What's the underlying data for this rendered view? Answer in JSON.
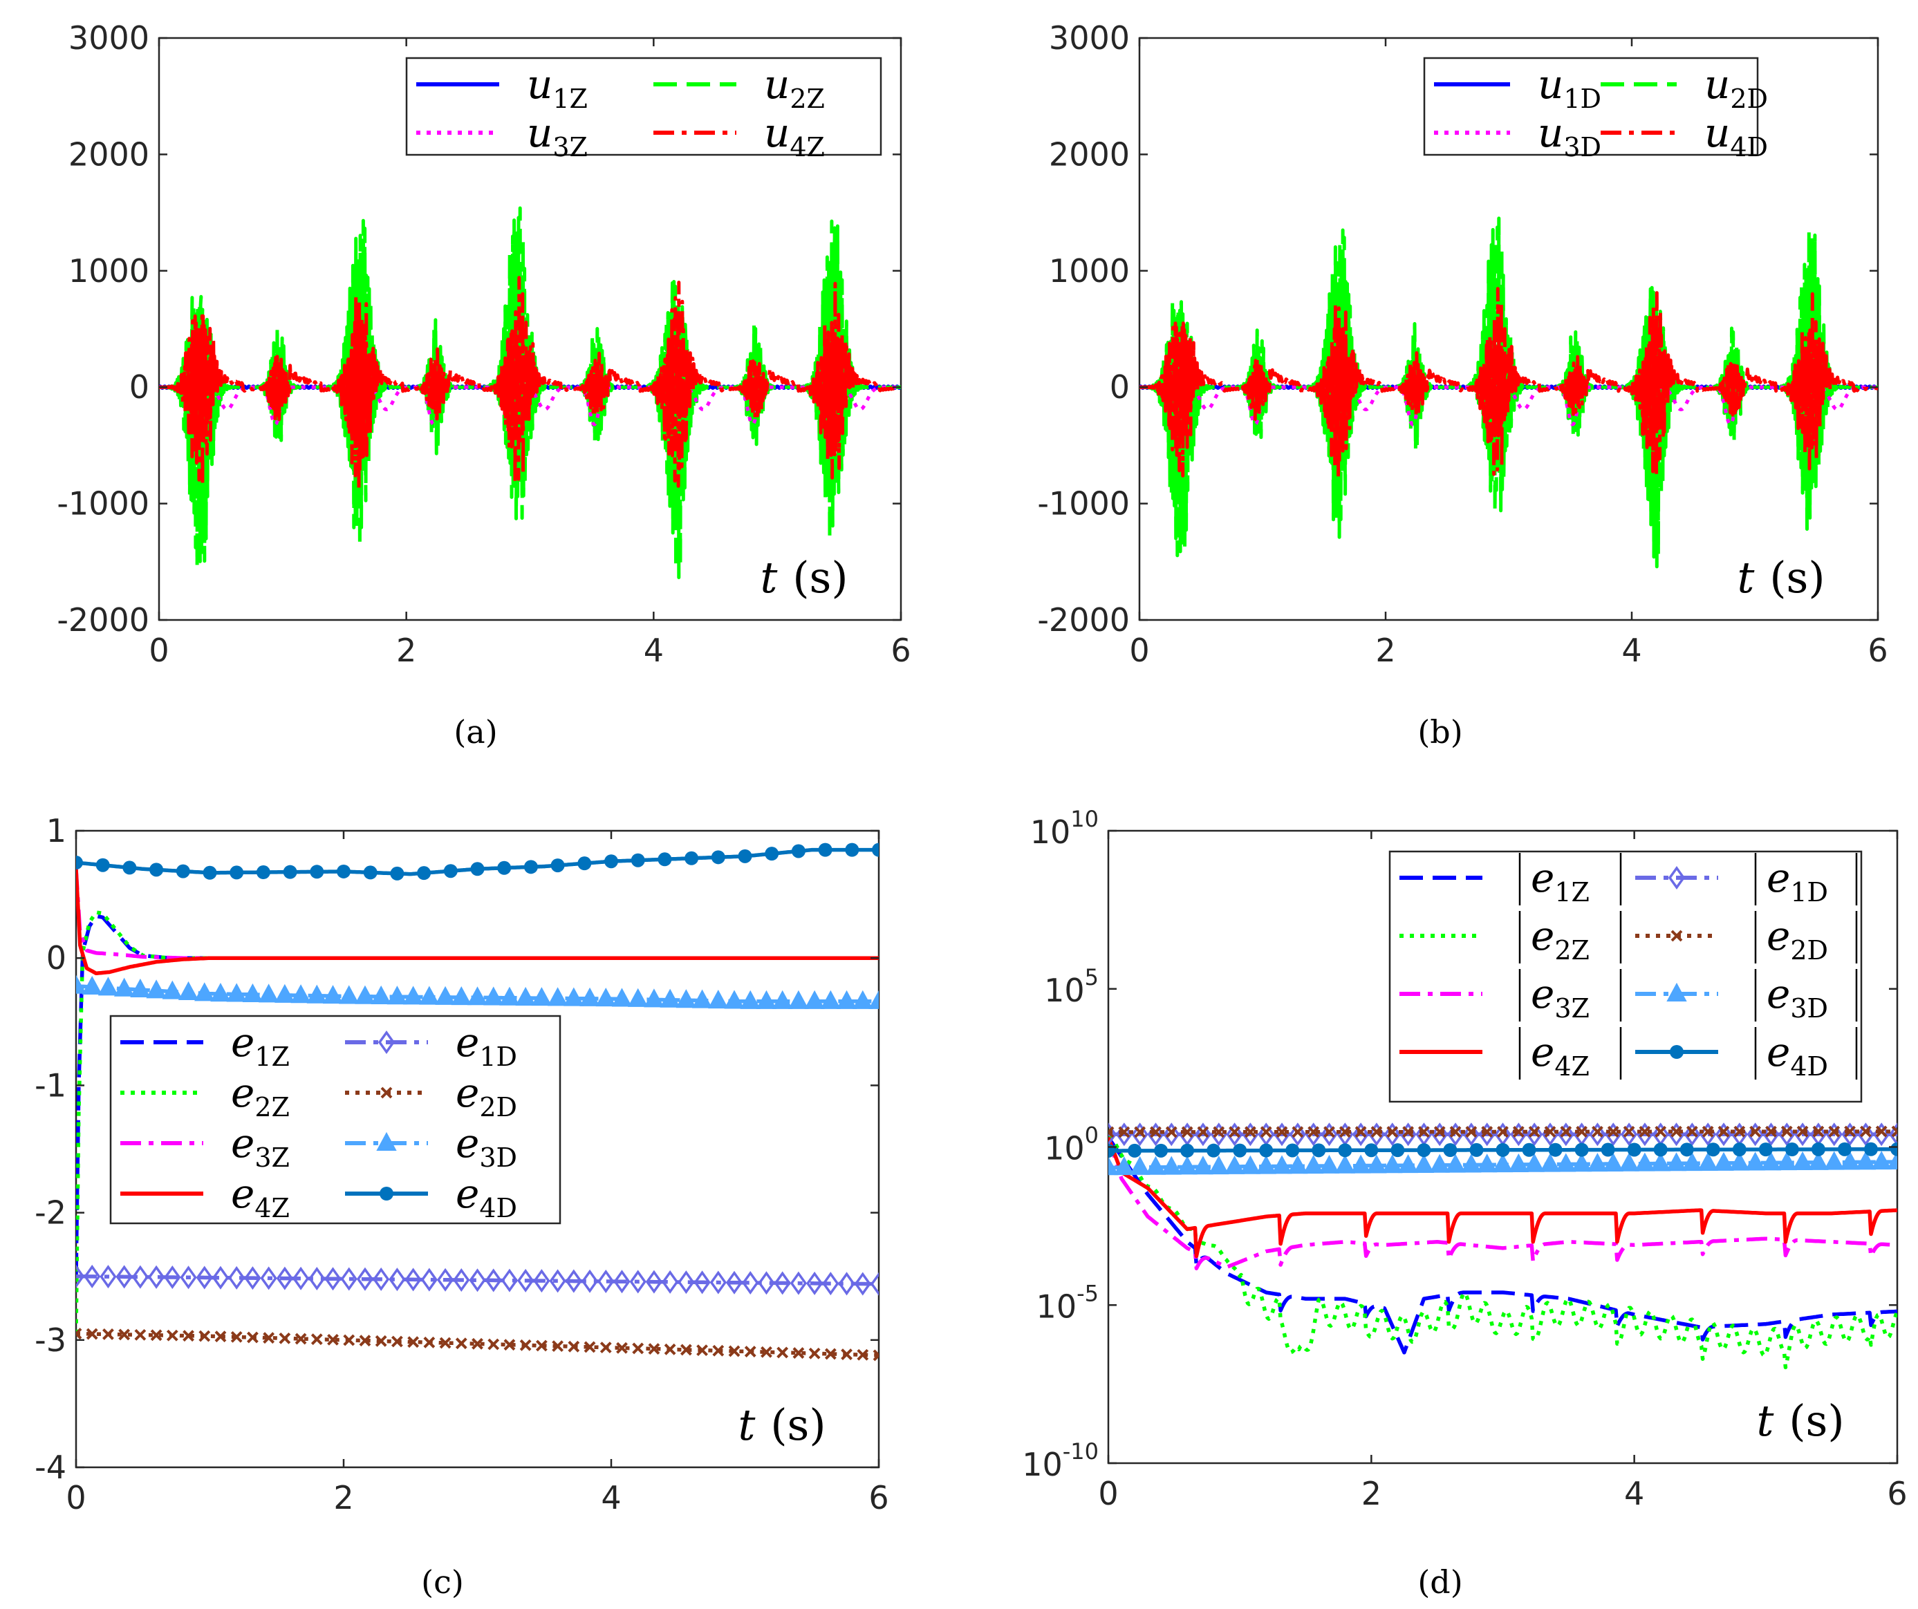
{
  "chart_data": [
    {
      "id": "a",
      "type": "line",
      "caption": "(a)",
      "xlabel": "t (s)",
      "xlabel_var": "t",
      "xlabel_unit": "(s)",
      "xlim": [
        0,
        6
      ],
      "ylim": [
        -2000,
        3000
      ],
      "yscale": "linear",
      "xticks": [
        0,
        2,
        4,
        6
      ],
      "xtick_labels": [
        "0",
        "2",
        "4",
        "6"
      ],
      "yticks": [
        -2000,
        -1000,
        0,
        1000,
        2000,
        3000
      ],
      "ytick_labels": [
        "-2000",
        "-1000",
        "0",
        "1000",
        "2000",
        "3000"
      ],
      "legend_position": "top-right",
      "legend_columns": 2,
      "bursts": [
        0.33,
        1.62,
        2.9,
        4.18,
        5.45
      ],
      "small_bursts": [
        0.96,
        2.24,
        3.54,
        4.82
      ],
      "series": [
        {
          "name": "u1",
          "base": "u",
          "index": "1",
          "subscript": "Z",
          "color": "#0000ff",
          "style": "solid",
          "shape": "zero",
          "amp": 8
        },
        {
          "name": "u2",
          "base": "u",
          "index": "2",
          "subscript": "Z",
          "color": "#00ff00",
          "style": "dashed",
          "shape": "spike",
          "amp": 1750
        },
        {
          "name": "u3",
          "base": "u",
          "index": "3",
          "subscript": "Z",
          "color": "#ff00ff",
          "style": "dotted",
          "shape": "dip",
          "amp": 320
        },
        {
          "name": "u4",
          "base": "u",
          "index": "4",
          "subscript": "Z",
          "color": "#ff0000",
          "style": "dashdot",
          "shape": "burst",
          "amp": 1000
        }
      ]
    },
    {
      "id": "b",
      "type": "line",
      "caption": "(b)",
      "xlabel": "t (s)",
      "xlabel_var": "t",
      "xlabel_unit": "(s)",
      "xlim": [
        0,
        6
      ],
      "ylim": [
        -2000,
        3000
      ],
      "yscale": "linear",
      "xticks": [
        0,
        2,
        4,
        6
      ],
      "xtick_labels": [
        "0",
        "2",
        "4",
        "6"
      ],
      "yticks": [
        -2000,
        -1000,
        0,
        1000,
        2000,
        3000
      ],
      "ytick_labels": [
        "-2000",
        "-1000",
        "0",
        "1000",
        "2000",
        "3000"
      ],
      "legend_position": "top-right",
      "legend_columns": 2,
      "bursts": [
        0.33,
        1.62,
        2.9,
        4.18,
        5.45
      ],
      "small_bursts": [
        0.96,
        2.24,
        3.54,
        4.82
      ],
      "series": [
        {
          "name": "u1",
          "base": "u",
          "index": "1",
          "subscript": "D",
          "color": "#0000ff",
          "style": "solid",
          "shape": "zero",
          "amp": 8
        },
        {
          "name": "u2",
          "base": "u",
          "index": "2",
          "subscript": "D",
          "color": "#00ff00",
          "style": "dashed",
          "shape": "spike",
          "amp": 1650
        },
        {
          "name": "u3",
          "base": "u",
          "index": "3",
          "subscript": "D",
          "color": "#ff00ff",
          "style": "dotted",
          "shape": "dip",
          "amp": 320
        },
        {
          "name": "u4",
          "base": "u",
          "index": "4",
          "subscript": "D",
          "color": "#ff0000",
          "style": "dashdot",
          "shape": "burst",
          "amp": 900
        }
      ]
    },
    {
      "id": "c",
      "type": "line",
      "caption": "(c)",
      "xlabel": "t (s)",
      "xlabel_var": "t",
      "xlabel_unit": "(s)",
      "xlim": [
        0,
        6
      ],
      "ylim": [
        -4,
        1
      ],
      "yscale": "linear",
      "xticks": [
        0,
        2,
        4,
        6
      ],
      "xtick_labels": [
        "0",
        "2",
        "4",
        "6"
      ],
      "yticks": [
        -4,
        -3,
        -2,
        -1,
        0,
        1
      ],
      "ytick_labels": [
        "-4",
        "-3",
        "-2",
        "-1",
        "0",
        "1"
      ],
      "legend_position": "center-left",
      "legend_columns": 2,
      "series": [
        {
          "name": "e1Z",
          "base": "e",
          "index": "1",
          "subscript": "Z",
          "color": "#0000ff",
          "style": "dashed",
          "marker": "none",
          "x": [
            0,
            0.02,
            0.05,
            0.1,
            0.15,
            0.2,
            0.3,
            0.4,
            0.5,
            0.7,
            1,
            6
          ],
          "y": [
            -2.5,
            -1.0,
            0.05,
            0.25,
            0.33,
            0.32,
            0.2,
            0.08,
            0.02,
            0.0,
            0.0,
            0.0
          ]
        },
        {
          "name": "e2Z",
          "base": "e",
          "index": "2",
          "subscript": "Z",
          "color": "#00ff00",
          "style": "dotted",
          "marker": "none",
          "x": [
            0,
            0.02,
            0.05,
            0.1,
            0.15,
            0.2,
            0.3,
            0.4,
            0.5,
            0.7,
            1,
            6
          ],
          "y": [
            -2.95,
            -1.2,
            0.05,
            0.28,
            0.36,
            0.35,
            0.22,
            0.09,
            0.02,
            0.0,
            0.0,
            0.0
          ]
        },
        {
          "name": "e3Z",
          "base": "e",
          "index": "3",
          "subscript": "Z",
          "color": "#ff00ff",
          "style": "dashdot",
          "marker": "none",
          "x": [
            0,
            0.03,
            0.08,
            0.15,
            0.3,
            0.5,
            0.8,
            6
          ],
          "y": [
            0.7,
            0.2,
            0.06,
            0.04,
            0.03,
            0.01,
            0.0,
            0.0
          ]
        },
        {
          "name": "e4Z",
          "base": "e",
          "index": "4",
          "subscript": "Z",
          "color": "#ff0000",
          "style": "solid",
          "marker": "none",
          "x": [
            0,
            0.03,
            0.08,
            0.15,
            0.25,
            0.4,
            0.6,
            0.8,
            1,
            6
          ],
          "y": [
            0.7,
            0.1,
            -0.08,
            -0.12,
            -0.11,
            -0.07,
            -0.03,
            -0.01,
            0.0,
            0.0
          ]
        },
        {
          "name": "e1D",
          "base": "e",
          "index": "1",
          "subscript": "D",
          "color": "#6a6ae6",
          "style": "dashdot",
          "marker": "diamond",
          "x": [
            0,
            1,
            2,
            3,
            4,
            5,
            6
          ],
          "y": [
            -2.5,
            -2.51,
            -2.52,
            -2.53,
            -2.54,
            -2.55,
            -2.56
          ]
        },
        {
          "name": "e2D",
          "base": "e",
          "index": "2",
          "subscript": "D",
          "color": "#8b3a1a",
          "style": "dotted",
          "marker": "x",
          "x": [
            0,
            1,
            2,
            3,
            4,
            5,
            6
          ],
          "y": [
            -2.95,
            -2.97,
            -3.0,
            -3.03,
            -3.06,
            -3.09,
            -3.12
          ]
        },
        {
          "name": "e3D",
          "base": "e",
          "index": "3",
          "subscript": "D",
          "color": "#4da6ff",
          "style": "dashdot",
          "marker": "triangle",
          "x": [
            0,
            1,
            2,
            3,
            4,
            5,
            6
          ],
          "y": [
            -0.22,
            -0.28,
            -0.3,
            -0.31,
            -0.32,
            -0.34,
            -0.34
          ]
        },
        {
          "name": "e4D",
          "base": "e",
          "index": "4",
          "subscript": "D",
          "color": "#0072bd",
          "style": "solid",
          "marker": "circle",
          "x": [
            0,
            0.5,
            1,
            2,
            2.5,
            3,
            3.5,
            4,
            4.5,
            5,
            5.5,
            6
          ],
          "y": [
            0.75,
            0.7,
            0.67,
            0.68,
            0.66,
            0.7,
            0.72,
            0.76,
            0.78,
            0.8,
            0.85,
            0.85
          ]
        }
      ]
    },
    {
      "id": "d",
      "type": "line",
      "caption": "(d)",
      "xlabel": "t (s)",
      "xlabel_var": "t",
      "xlabel_unit": "(s)",
      "xlim": [
        0,
        6
      ],
      "ylim": [
        -10,
        10
      ],
      "yscale": "log10",
      "xticks": [
        0,
        2,
        4,
        6
      ],
      "xtick_labels": [
        "0",
        "2",
        "4",
        "6"
      ],
      "yticks": [
        -10,
        -5,
        0,
        5,
        10
      ],
      "ytick_labels": [
        {
          "base": "10",
          "exp": "-10"
        },
        {
          "base": "10",
          "exp": "-5"
        },
        {
          "base": "10",
          "exp": "0"
        },
        {
          "base": "10",
          "exp": "5"
        },
        {
          "base": "10",
          "exp": "10"
        }
      ],
      "legend_position": "top-right",
      "legend_columns": 2,
      "series": [
        {
          "name": "|e1Z|",
          "base": "e",
          "index": "1",
          "subscript": "Z",
          "abs": true,
          "color": "#0000ff",
          "style": "dashed",
          "marker": "none",
          "x": [
            0,
            0.3,
            0.6,
            0.9,
            1.2,
            1.5,
            1.8,
            2.1,
            2.25,
            2.4,
            2.7,
            3.0,
            3.5,
            4.0,
            4.5,
            5.0,
            5.5,
            6
          ],
          "log": [
            0.3,
            -1.5,
            -3,
            -4,
            -4.6,
            -4.8,
            -4.8,
            -5.1,
            -6.5,
            -4.8,
            -4.6,
            -4.6,
            -4.8,
            -5.3,
            -5.7,
            -5.6,
            -5.3,
            -5.2
          ]
        },
        {
          "name": "|e2Z|",
          "base": "e",
          "index": "2",
          "subscript": "Z",
          "abs": true,
          "color": "#00ff00",
          "style": "dotted",
          "marker": "none",
          "x": [
            0,
            0.3,
            0.6,
            0.9,
            1.1,
            1.3,
            1.45,
            1.6,
            1.9,
            2.3,
            2.7,
            3.0,
            3.5,
            4.0,
            4.5,
            5.0,
            5.5,
            6
          ],
          "log": [
            0.3,
            -1.2,
            -2.5,
            -3.5,
            -4.8,
            -5.2,
            -6.8,
            -5.2,
            -5.4,
            -5.8,
            -5.0,
            -5.6,
            -5.2,
            -5.5,
            -5.9,
            -6.2,
            -5.8,
            -5.6
          ]
        },
        {
          "name": "|e3Z|",
          "base": "e",
          "index": "3",
          "subscript": "Z",
          "abs": true,
          "color": "#ff00ff",
          "style": "dashdot",
          "marker": "none",
          "x": [
            0,
            0.1,
            0.3,
            0.6,
            0.9,
            1.2,
            1.5,
            1.8,
            2.1,
            2.5,
            3.0,
            3.5,
            4.0,
            4.5,
            5.0,
            5.5,
            6
          ],
          "log": [
            0.3,
            -1.0,
            -2.2,
            -3.2,
            -3.8,
            -3.3,
            -3.1,
            -3.0,
            -3.1,
            -3.0,
            -3.2,
            -3.0,
            -3.1,
            -3.0,
            -2.9,
            -3.0,
            -3.1
          ]
        },
        {
          "name": "|e4Z|",
          "base": "e",
          "index": "4",
          "subscript": "Z",
          "abs": true,
          "color": "#ff0000",
          "style": "solid",
          "marker": "none",
          "x": [
            0,
            0.1,
            0.3,
            0.6,
            0.9,
            1.2,
            1.5,
            2,
            2.5,
            3,
            3.5,
            4,
            4.5,
            5,
            5.5,
            6
          ],
          "log": [
            0.3,
            -0.8,
            -1.3,
            -2.6,
            -2.4,
            -2.2,
            -2.1,
            -2.1,
            -2.1,
            -2.1,
            -2.1,
            -2.1,
            -2.0,
            -2.1,
            -2.1,
            -2.0
          ]
        },
        {
          "name": "|e1D|",
          "base": "e",
          "index": "1",
          "subscript": "D",
          "abs": true,
          "color": "#6a6ae6",
          "style": "dashdot",
          "marker": "diamond",
          "x": [
            0,
            6
          ],
          "log": [
            0.4,
            0.4
          ]
        },
        {
          "name": "|e2D|",
          "base": "e",
          "index": "2",
          "subscript": "D",
          "abs": true,
          "color": "#8b3a1a",
          "style": "dotted",
          "marker": "x",
          "x": [
            0,
            6
          ],
          "log": [
            0.47,
            0.49
          ]
        },
        {
          "name": "|e3D|",
          "base": "e",
          "index": "3",
          "subscript": "D",
          "abs": true,
          "color": "#4da6ff",
          "style": "dashdot",
          "marker": "triangle",
          "x": [
            0,
            6
          ],
          "log": [
            -0.65,
            -0.47
          ]
        },
        {
          "name": "|e4D|",
          "base": "e",
          "index": "4",
          "subscript": "D",
          "abs": true,
          "color": "#0072bd",
          "style": "solid",
          "marker": "circle",
          "x": [
            0,
            6
          ],
          "log": [
            -0.12,
            -0.07
          ]
        }
      ]
    }
  ]
}
